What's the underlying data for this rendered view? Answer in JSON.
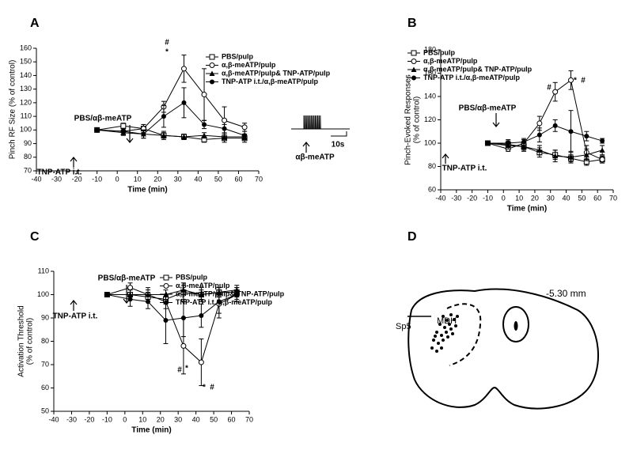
{
  "chart_data": [
    {
      "type": "line",
      "panel": "A",
      "xlabel": "Time (min)",
      "ylabel": [
        "Pinch RF Size (% of control)"
      ],
      "x": [
        -10,
        3,
        13,
        23,
        33,
        43,
        53,
        63
      ],
      "xlim": [
        -40,
        70
      ],
      "xticks": [
        -40,
        -30,
        -20,
        -10,
        0,
        10,
        20,
        30,
        40,
        50,
        60,
        70
      ],
      "ylim": [
        70,
        160
      ],
      "yticks": [
        70,
        80,
        90,
        100,
        110,
        120,
        130,
        140,
        150,
        160
      ],
      "series": [
        {
          "name": "PBS/pulp",
          "marker": "square-open",
          "color": "#000000",
          "values": [
            100,
            103,
            101,
            96,
            95,
            93,
            94,
            94
          ],
          "errors": [
            0,
            2,
            3,
            3,
            2,
            2,
            3,
            3
          ]
        },
        {
          "name": "α,β-meATP/pulp",
          "marker": "circle-open",
          "color": "#000000",
          "values": [
            100,
            99,
            101,
            117,
            145,
            126,
            107,
            102
          ],
          "errors": [
            0,
            2,
            3,
            4,
            10,
            19,
            10,
            3
          ]
        },
        {
          "name": "α,β-meATP/pulp& TNP-ATP/pulp",
          "marker": "triangle-filled",
          "color": "#000000",
          "values": [
            100,
            98,
            97,
            96,
            95,
            96,
            95,
            95
          ],
          "errors": [
            0,
            2,
            3,
            2,
            2,
            2,
            2,
            2
          ]
        },
        {
          "name": "TNP-ATP i.t./α,β-meATP/pulp",
          "marker": "circle-filled",
          "color": "#000000",
          "values": [
            100,
            99,
            97,
            110,
            120,
            104,
            101,
            96
          ],
          "errors": [
            0,
            2,
            3,
            8,
            11,
            3,
            3,
            3
          ]
        }
      ],
      "annotations": [
        "#",
        "*",
        "PBS/αβ-meATP",
        "TNP-ATP i.t.",
        "10s",
        "αβ-meATP"
      ]
    },
    {
      "type": "line",
      "panel": "B",
      "xlabel": "Time (min)",
      "ylabel": [
        "Pinch-Evoked Responses",
        "(% of control)"
      ],
      "x": [
        -10,
        3,
        13,
        23,
        33,
        43,
        53,
        63
      ],
      "xlim": [
        -40,
        70
      ],
      "xticks": [
        -40,
        -30,
        -20,
        -10,
        0,
        10,
        20,
        30,
        40,
        50,
        60,
        70
      ],
      "ylim": [
        60,
        180
      ],
      "yticks": [
        60,
        80,
        100,
        120,
        140,
        160,
        180
      ],
      "series": [
        {
          "name": "PBS/pulp",
          "marker": "square-open",
          "color": "#000000",
          "values": [
            100,
            99,
            97,
            92,
            90,
            87,
            84,
            86
          ],
          "errors": [
            0,
            3,
            4,
            4,
            4,
            3,
            3,
            3
          ]
        },
        {
          "name": "α,β-meATP/pulp",
          "marker": "circle-open",
          "color": "#000000",
          "values": [
            100,
            95,
            100,
            117,
            144,
            154,
            92,
            86
          ],
          "errors": [
            0,
            2,
            3,
            6,
            8,
            8,
            6,
            3
          ]
        },
        {
          "name": "α,β-meATP/pulp& TNP-ATP/pulp",
          "marker": "triangle-filled",
          "color": "#000000",
          "values": [
            100,
            98,
            97,
            94,
            89,
            88,
            90,
            94
          ],
          "errors": [
            0,
            3,
            3,
            4,
            5,
            5,
            5,
            4
          ]
        },
        {
          "name": "TNP-ATP i.t./α,β-meATP/pulp",
          "marker": "circle-filled",
          "color": "#000000",
          "values": [
            100,
            100,
            101,
            107,
            115,
            110,
            106,
            102
          ],
          "errors": [
            0,
            3,
            3,
            6,
            5,
            18,
            4,
            2
          ]
        }
      ],
      "annotations": [
        "#",
        "*",
        "#",
        "PBS/αβ-meATP",
        "TNP-ATP i.t."
      ]
    },
    {
      "type": "line",
      "panel": "C",
      "xlabel": "Time (min)",
      "ylabel": [
        "Activation Threshold",
        "(% of control)"
      ],
      "x": [
        -10,
        3,
        13,
        23,
        33,
        43,
        53,
        63
      ],
      "xlim": [
        -40,
        70
      ],
      "xticks": [
        -40,
        -30,
        -20,
        -10,
        0,
        10,
        20,
        30,
        40,
        50,
        60,
        70
      ],
      "ylim": [
        50,
        110
      ],
      "yticks": [
        50,
        60,
        70,
        80,
        90,
        100,
        110
      ],
      "series": [
        {
          "name": "PBS/pulp",
          "marker": "square-open",
          "color": "#000000",
          "values": [
            100,
            100,
            99,
            98,
            101,
            100,
            101,
            101
          ],
          "errors": [
            0,
            2,
            2,
            2,
            4,
            3,
            2,
            2
          ]
        },
        {
          "name": "α,β-meATP/pulp",
          "marker": "circle-open",
          "color": "#000000",
          "values": [
            100,
            103,
            100,
            97,
            78,
            71,
            96,
            100
          ],
          "errors": [
            0,
            2,
            3,
            3,
            12,
            10,
            6,
            2
          ]
        },
        {
          "name": "α,β-meATP/pulp& TNP-ATP/pulp",
          "marker": "triangle-filled",
          "color": "#000000",
          "values": [
            100,
            100,
            100,
            100,
            102,
            100,
            101,
            102
          ],
          "errors": [
            0,
            2,
            2,
            2,
            2,
            2,
            2,
            2
          ]
        },
        {
          "name": "TNP-ATP i.t./α,β-meATP/pulp",
          "marker": "circle-filled",
          "color": "#000000",
          "values": [
            100,
            98,
            97,
            89,
            90,
            91,
            97,
            100
          ],
          "errors": [
            0,
            3,
            3,
            10,
            8,
            5,
            5,
            3
          ]
        }
      ],
      "annotations": [
        "#",
        "*",
        "*",
        "#",
        "PBS/αβ-meATP",
        "TNP-ATP i.t."
      ]
    }
  ],
  "diagram": {
    "panel": "D",
    "level": "-5.30 mm",
    "labels": [
      "Sp5",
      "MDH"
    ]
  }
}
